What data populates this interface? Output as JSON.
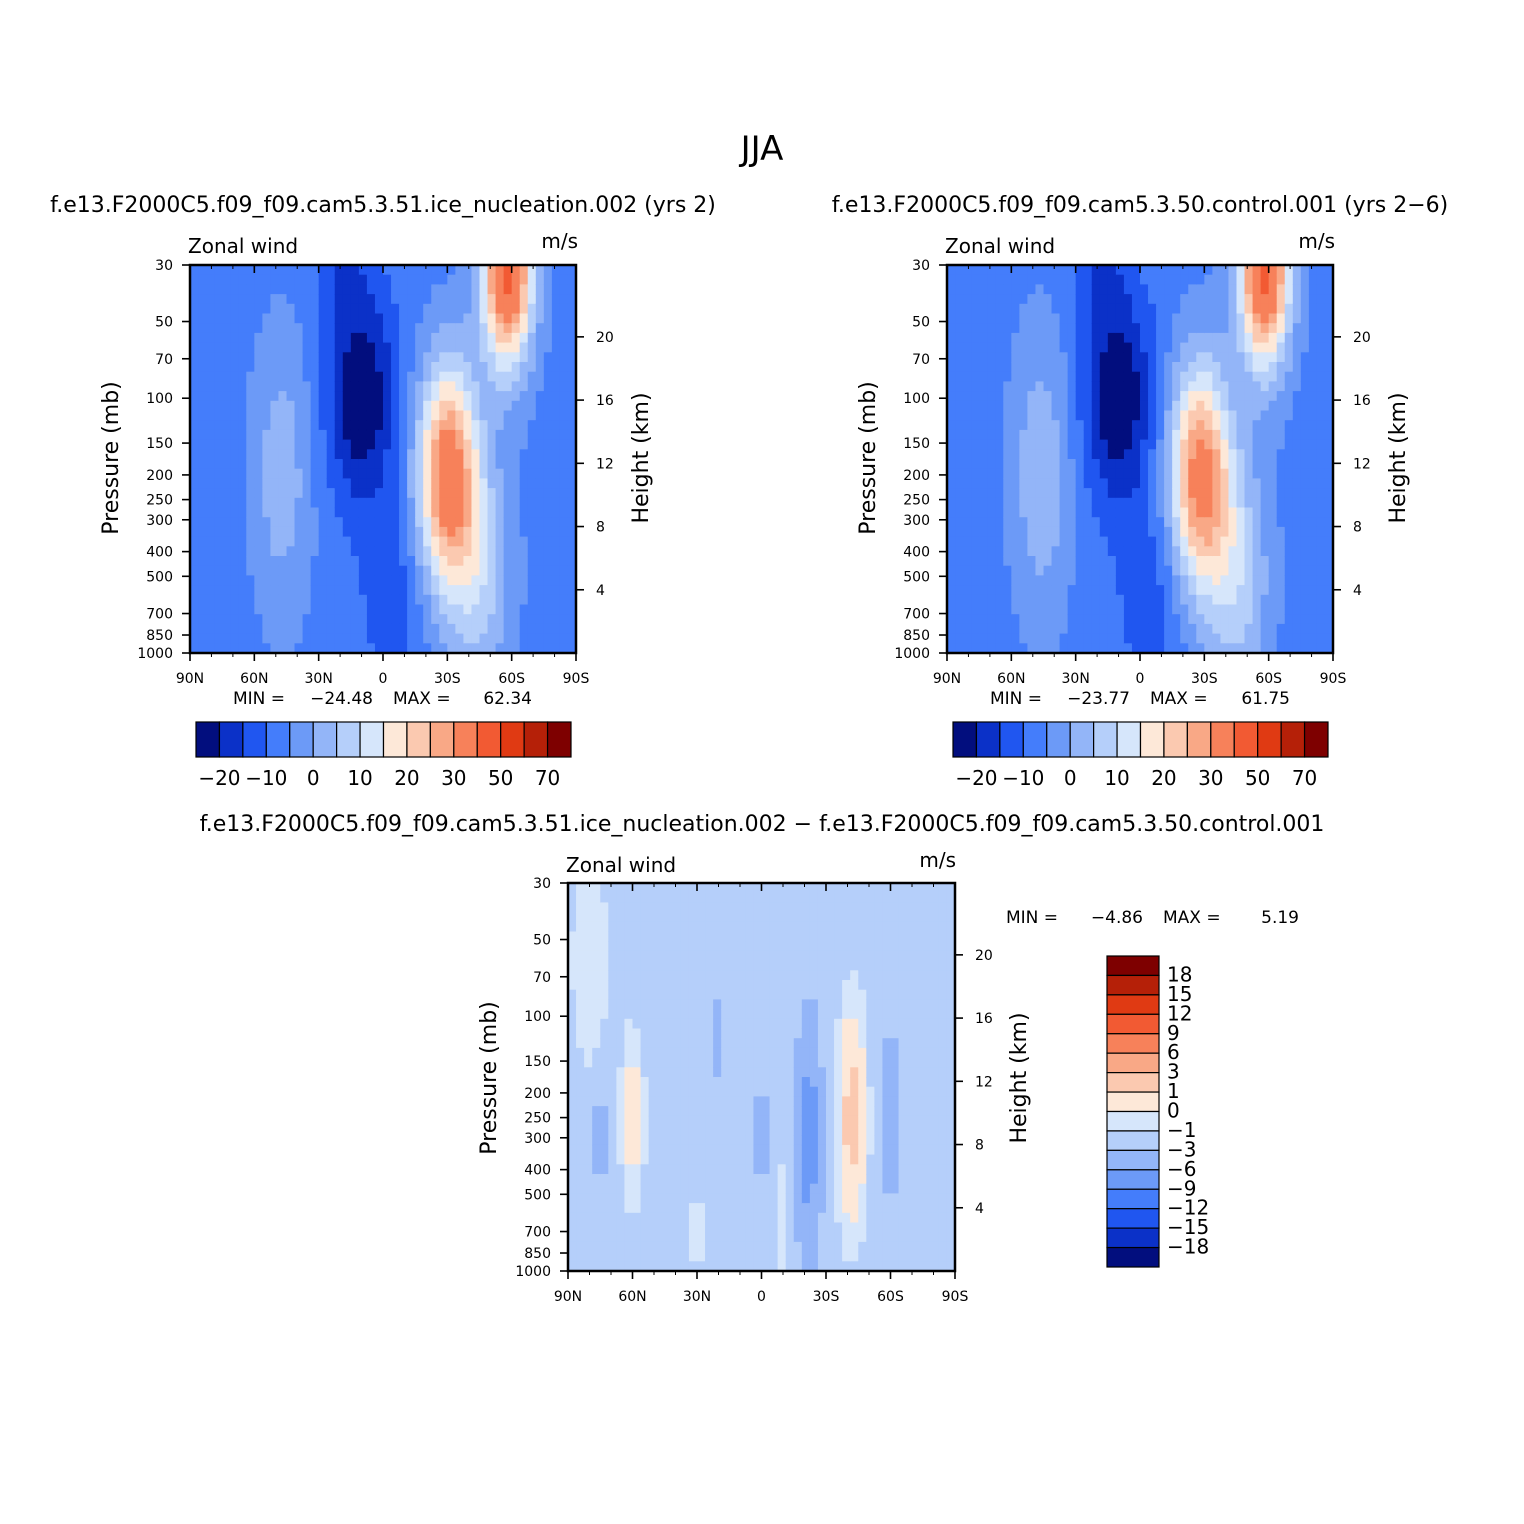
{
  "figure_title": "JJA",
  "colors": {
    "pos": [
      "#fde8d8",
      "#fbc9b0",
      "#f9a886",
      "#f7815a",
      "#f25a33",
      "#e03a13",
      "#b52008",
      "#7e0000"
    ],
    "neg": [
      "#d6e6fb",
      "#b5cffa",
      "#93b5f8",
      "#6c9af7",
      "#447dfb",
      "#2056f0",
      "#0b31c8",
      "#020e7e"
    ]
  },
  "chart_data": [
    {
      "type": "contour",
      "id": "panel_top_left",
      "title": "f.e13.F2000C5.f09_f09.cam5.3.51.ice_nucleation.002  (yrs  2)",
      "left_label": "Zonal  wind",
      "right_label": "m/s",
      "xlabel": "",
      "ylabel": "Pressure  (mb)",
      "y2label": "Height  (km)",
      "x_ticks": [
        "90N",
        "60N",
        "30N",
        "0",
        "30S",
        "60S",
        "90S"
      ],
      "p_ticks": [
        "30",
        "50",
        "70",
        "100",
        "150",
        "200",
        "250",
        "300",
        "400",
        "500",
        "700",
        "850",
        "1000"
      ],
      "h_ticks": [
        "20",
        "16",
        "12",
        "8",
        "4"
      ],
      "min_label": "MIN  =",
      "min_value": "-24.48",
      "max_label": "MAX  =",
      "max_value": "62.34",
      "colorbar_labels": [
        "-20",
        "-10",
        "0",
        "10",
        "20",
        "30",
        "50",
        "70"
      ],
      "field": {
        "background": -7,
        "features": [
          {
            "lat": 10,
            "p": 100,
            "amp": -18,
            "wlat": 16,
            "wp": 0.95
          },
          {
            "lat": 18,
            "p": 30,
            "amp": -8,
            "wlat": 10,
            "wp": 0.5
          },
          {
            "lat": -5,
            "p": 600,
            "amp": -6,
            "wlat": 15,
            "wp": 0.9
          },
          {
            "lat": 47,
            "p": 200,
            "amp": 10,
            "wlat": 14,
            "wp": 1.3
          },
          {
            "lat": -30,
            "p": 200,
            "amp": 42,
            "wlat": 14,
            "wp": 1.0
          },
          {
            "lat": -58,
            "p": 30,
            "amp": 50,
            "wlat": 12,
            "wp": 0.9
          },
          {
            "lat": -45,
            "p": 500,
            "amp": 14,
            "wlat": 15,
            "wp": 1.1
          }
        ]
      }
    },
    {
      "type": "contour",
      "id": "panel_top_right",
      "title": "f.e13.F2000C5.f09_f09.cam5.3.50.control.001  (yrs  2-6)",
      "left_label": "Zonal  wind",
      "right_label": "m/s",
      "xlabel": "",
      "ylabel": "Pressure  (mb)",
      "y2label": "Height  (km)",
      "x_ticks": [
        "90N",
        "60N",
        "30N",
        "0",
        "30S",
        "60S",
        "90S"
      ],
      "p_ticks": [
        "30",
        "50",
        "70",
        "100",
        "150",
        "200",
        "250",
        "300",
        "400",
        "500",
        "700",
        "850",
        "1000"
      ],
      "h_ticks": [
        "20",
        "16",
        "12",
        "8",
        "4"
      ],
      "min_label": "MIN  =",
      "min_value": "-23.77",
      "max_label": "MAX  =",
      "max_value": "61.75",
      "colorbar_labels": [
        "-20",
        "-10",
        "0",
        "10",
        "20",
        "30",
        "50",
        "70"
      ],
      "field": {
        "background": -7,
        "features": [
          {
            "lat": 10,
            "p": 100,
            "amp": -18,
            "wlat": 16,
            "wp": 0.95
          },
          {
            "lat": 18,
            "p": 30,
            "amp": -8,
            "wlat": 10,
            "wp": 0.5
          },
          {
            "lat": -5,
            "p": 600,
            "amp": -6,
            "wlat": 15,
            "wp": 0.9
          },
          {
            "lat": 46,
            "p": 200,
            "amp": 11,
            "wlat": 14,
            "wp": 1.3
          },
          {
            "lat": -28,
            "p": 200,
            "amp": 40,
            "wlat": 14,
            "wp": 1.0
          },
          {
            "lat": -58,
            "p": 30,
            "amp": 50,
            "wlat": 12,
            "wp": 0.9
          },
          {
            "lat": -45,
            "p": 500,
            "amp": 15,
            "wlat": 15,
            "wp": 1.1
          }
        ]
      }
    },
    {
      "type": "contour",
      "id": "panel_difference",
      "title": "f.e13.F2000C5.f09_f09.cam5.3.51.ice_nucleation.002  -  f.e13.F2000C5.f09_f09.cam5.3.50.control.001",
      "left_label": "Zonal  wind",
      "right_label": "m/s",
      "xlabel": "",
      "ylabel": "Pressure  (mb)",
      "y2label": "Height  (km)",
      "x_ticks": [
        "90N",
        "60N",
        "30N",
        "0",
        "30S",
        "60S",
        "90S"
      ],
      "p_ticks": [
        "30",
        "50",
        "70",
        "100",
        "150",
        "200",
        "250",
        "300",
        "400",
        "500",
        "700",
        "850",
        "1000"
      ],
      "h_ticks": [
        "20",
        "16",
        "12",
        "8",
        "4"
      ],
      "min_label": "MIN  =",
      "min_value": "-4.86",
      "max_label": "MAX  =",
      "max_value": "5.19",
      "colorbar_labels": [
        "18",
        "15",
        "12",
        "9",
        "6",
        "3",
        "1",
        "0",
        "-1",
        "-3",
        "-6",
        "-9",
        "-12",
        "-15",
        "-18"
      ],
      "field": {
        "background": -0.5,
        "features": [
          {
            "lat": 80,
            "p": 60,
            "amp": 1.5,
            "wlat": 8,
            "wp": 0.9
          },
          {
            "lat": 60,
            "p": 250,
            "amp": 2.5,
            "wlat": 5,
            "wp": 0.7
          },
          {
            "lat": 75,
            "p": 300,
            "amp": -1.3,
            "wlat": 3,
            "wp": 0.5
          },
          {
            "lat": 20,
            "p": 120,
            "amp": -1.2,
            "wlat": 3,
            "wp": 0.4
          },
          {
            "lat": 0,
            "p": 300,
            "amp": -1.2,
            "wlat": 3,
            "wp": 0.5
          },
          {
            "lat": -22,
            "p": 300,
            "amp": -4.0,
            "wlat": 5,
            "wp": 0.9
          },
          {
            "lat": -42,
            "p": 250,
            "amp": 4.5,
            "wlat": 6,
            "wp": 0.9
          },
          {
            "lat": -60,
            "p": 250,
            "amp": -2.5,
            "wlat": 4,
            "wp": 0.6
          },
          {
            "lat": -10,
            "p": 600,
            "amp": 1.3,
            "wlat": 3,
            "wp": 0.5
          },
          {
            "lat": 30,
            "p": 700,
            "amp": 1.2,
            "wlat": 3,
            "wp": 0.4
          }
        ]
      }
    }
  ]
}
